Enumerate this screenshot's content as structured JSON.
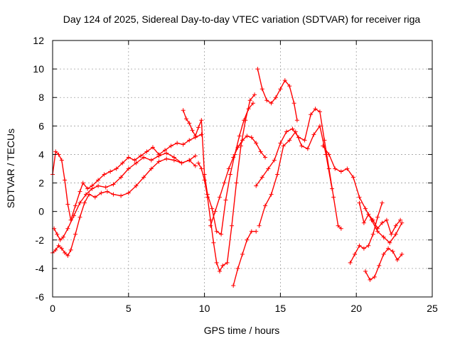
{
  "chart_data": {
    "type": "scatter",
    "title": "Day 124 of 2025, Sidereal Day-to-day VTEC variation (SDTVAR) for receiver riga",
    "xlabel": "GPS time / hours",
    "ylabel": "SDTVAR / TECUs",
    "xlim": [
      0,
      25
    ],
    "ylim": [
      -6,
      12
    ],
    "xticks": [
      "0",
      "5",
      "10",
      "15",
      "20",
      "25"
    ],
    "yticks": [
      "-6",
      "-4",
      "-2",
      "0",
      "2",
      "4",
      "6",
      "8",
      "10",
      "12"
    ],
    "grid": true,
    "legend": "none",
    "marker": "+",
    "color": "#ff0000",
    "series": [
      {
        "x": [
          0.0,
          0.2,
          0.4,
          0.6,
          0.8,
          1.0,
          1.2,
          1.5,
          1.8,
          2.0,
          2.3,
          2.6,
          3.0,
          3.4,
          3.8,
          4.2,
          4.6,
          5.0,
          5.4,
          5.8,
          6.2,
          6.6,
          7.0,
          7.4,
          7.8,
          8.2,
          8.6,
          9.0,
          9.4,
          9.8
        ],
        "y": [
          2.6,
          4.2,
          4.0,
          3.6,
          2.2,
          0.5,
          -0.6,
          0.4,
          1.4,
          2.0,
          1.6,
          1.8,
          2.2,
          2.6,
          2.8,
          3.0,
          3.4,
          3.8,
          3.6,
          3.9,
          4.2,
          4.5,
          4.0,
          4.3,
          4.6,
          4.8,
          4.7,
          5.0,
          5.2,
          5.4
        ]
      },
      {
        "x": [
          0.0,
          0.2,
          0.4,
          0.6,
          0.8,
          1.0,
          1.2,
          1.5,
          1.8,
          2.1,
          2.4,
          2.8,
          3.2,
          3.6,
          4.0,
          4.5,
          5.0,
          5.5,
          6.0,
          6.5,
          7.0,
          7.5,
          8.0,
          8.5,
          9.0,
          9.4
        ],
        "y": [
          -2.9,
          -2.7,
          -2.4,
          -2.6,
          -2.9,
          -3.1,
          -2.7,
          -1.6,
          -0.4,
          0.6,
          1.2,
          1.0,
          1.3,
          1.4,
          1.2,
          1.1,
          1.3,
          1.8,
          2.4,
          3.0,
          3.5,
          3.7,
          3.6,
          3.4,
          3.6,
          3.9
        ]
      },
      {
        "x": [
          0.1,
          0.3,
          0.5,
          0.7,
          1.0,
          1.4,
          1.8,
          2.2,
          2.6,
          3.0,
          3.5,
          4.0,
          4.5,
          5.0,
          5.5,
          6.0,
          6.5,
          7.0,
          7.5,
          8.0,
          8.5,
          9.0,
          9.4
        ],
        "y": [
          -1.2,
          -1.6,
          -2.0,
          -1.8,
          -1.2,
          -0.3,
          0.6,
          1.2,
          1.6,
          1.8,
          1.7,
          1.9,
          2.4,
          3.0,
          3.4,
          3.8,
          3.6,
          3.9,
          4.1,
          3.8,
          3.4,
          3.6,
          3.2
        ]
      },
      {
        "x": [
          8.6,
          8.8,
          9.0,
          9.2,
          9.4,
          9.6,
          9.8,
          10.0,
          10.2,
          10.5,
          10.8,
          11.1,
          11.4,
          11.7,
          12.0,
          12.3,
          12.6,
          12.9,
          13.2
        ],
        "y": [
          7.1,
          6.5,
          6.2,
          5.7,
          5.3,
          5.9,
          6.4,
          2.6,
          1.2,
          0.2,
          -1.4,
          -1.6,
          0.8,
          2.6,
          4.0,
          5.3,
          6.4,
          7.2,
          7.6
        ]
      },
      {
        "x": [
          9.6,
          9.8,
          10.0,
          10.2,
          10.4,
          10.6,
          10.8,
          11.0,
          11.2,
          11.5,
          11.8,
          12.1,
          12.4,
          12.7,
          13.0,
          13.3
        ],
        "y": [
          3.4,
          3.0,
          2.2,
          1.0,
          -0.6,
          -2.2,
          -3.6,
          -4.2,
          -3.8,
          -3.6,
          -1.0,
          2.0,
          4.6,
          6.4,
          7.8,
          8.2
        ]
      },
      {
        "x": [
          11.9,
          12.2,
          12.5,
          12.8,
          13.1,
          13.4
        ],
        "y": [
          -5.2,
          -4.0,
          -3.0,
          -2.0,
          -1.4,
          -1.4
        ]
      },
      {
        "x": [
          10.4,
          10.7,
          11.0,
          11.3,
          11.6,
          11.9,
          12.2,
          12.5,
          12.8,
          13.1,
          13.4,
          13.7,
          14.0
        ],
        "y": [
          -1.0,
          0.0,
          1.0,
          2.0,
          3.0,
          3.8,
          4.5,
          5.0,
          5.3,
          5.2,
          4.8,
          4.2,
          3.8
        ]
      },
      {
        "x": [
          13.5,
          13.8,
          14.1,
          14.4,
          14.7,
          15.0,
          15.3,
          15.6,
          15.9,
          16.1
        ],
        "y": [
          10.0,
          8.6,
          7.8,
          7.6,
          8.0,
          8.6,
          9.2,
          8.8,
          7.6,
          6.4
        ]
      },
      {
        "x": [
          13.4,
          13.8,
          14.2,
          14.6,
          15.0,
          15.4,
          15.8,
          16.2,
          16.6,
          17.0,
          17.3,
          17.6,
          17.9,
          18.2,
          18.5,
          18.8,
          19.0
        ],
        "y": [
          1.8,
          2.4,
          3.0,
          3.6,
          4.8,
          5.6,
          5.8,
          5.2,
          5.0,
          6.8,
          7.2,
          7.0,
          5.0,
          3.0,
          1.0,
          -1.0,
          -1.2
        ]
      },
      {
        "x": [
          13.6,
          14.0,
          14.4,
          14.8,
          15.2,
          15.6,
          16.0,
          16.4,
          16.8,
          17.2,
          17.6,
          18.0,
          18.4
        ],
        "y": [
          -1.0,
          0.4,
          1.2,
          2.6,
          4.6,
          5.0,
          5.6,
          4.6,
          4.4,
          5.4,
          6.0,
          4.0,
          1.6
        ]
      },
      {
        "x": [
          17.8,
          18.2,
          18.6,
          19.0,
          19.4,
          19.8,
          20.2,
          20.6,
          21.0,
          21.4,
          21.8,
          22.2,
          22.6,
          23.0
        ],
        "y": [
          4.6,
          4.0,
          3.0,
          2.8,
          3.0,
          2.4,
          1.0,
          0.2,
          -0.6,
          -1.4,
          -1.8,
          -2.2,
          -1.6,
          -0.8
        ]
      },
      {
        "x": [
          19.6,
          19.9,
          20.2,
          20.5,
          20.8,
          21.1,
          21.4,
          21.7
        ],
        "y": [
          -3.6,
          -3.0,
          -2.4,
          -2.6,
          -2.4,
          -1.6,
          -0.4,
          0.6
        ]
      },
      {
        "x": [
          20.6,
          20.9,
          21.2,
          21.5,
          21.8,
          22.1,
          22.4,
          22.7,
          23.0
        ],
        "y": [
          -4.2,
          -4.8,
          -4.6,
          -3.8,
          -3.0,
          -2.6,
          -2.8,
          -3.4,
          -3.0
        ]
      },
      {
        "x": [
          20.2,
          20.5,
          20.8,
          21.1,
          21.4,
          21.7,
          22.0,
          22.3,
          22.6,
          22.9
        ],
        "y": [
          0.6,
          -0.8,
          -0.2,
          -0.6,
          -1.2,
          -0.8,
          -0.6,
          -1.6,
          -1.0,
          -0.6
        ]
      }
    ]
  }
}
